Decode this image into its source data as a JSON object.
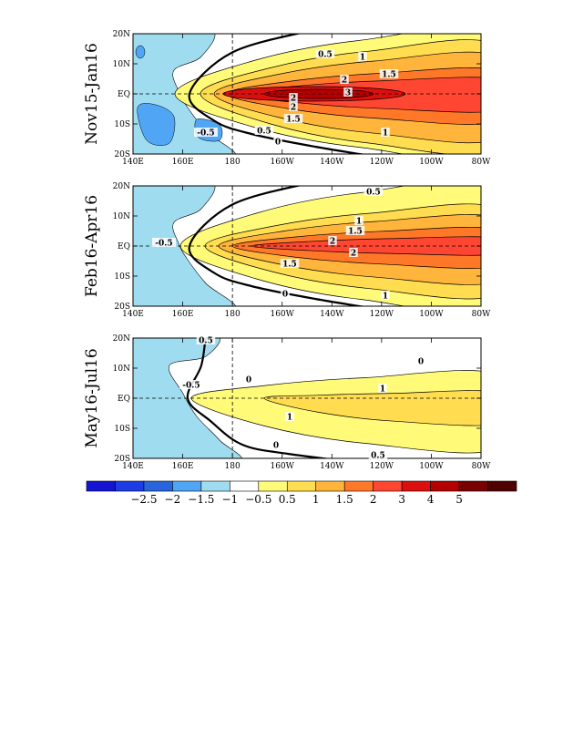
{
  "colorbar": {
    "colors": [
      "#1414d2",
      "#1e3ce6",
      "#2864dc",
      "#50a5f5",
      "#a0dcf0",
      "#ffffff",
      "#fffa78",
      "#ffdc50",
      "#ffb43c",
      "#ff7828",
      "#ff4632",
      "#dc0f0f",
      "#b40000",
      "#780000",
      "#500000"
    ],
    "labels": [
      "-2.5",
      "-2",
      "-1.5",
      "-1",
      "-0.5",
      "0.5",
      "1",
      "1.5",
      "2",
      "3",
      "4",
      "5"
    ]
  },
  "chart_data": [
    {
      "type": "heatmap",
      "title": "Nov15-Jan16",
      "x_tick_labels": [
        "140E",
        "160E",
        "180",
        "160W",
        "140W",
        "120W",
        "100W",
        "80W"
      ],
      "y_tick_labels": [
        "20N",
        "10N",
        "EQ",
        "10S",
        "20S"
      ],
      "xlim": [
        140,
        280
      ],
      "ylim": [
        -20,
        20
      ],
      "contour_labels": [
        "0.5",
        "1",
        "1.5",
        "2",
        "3",
        "2",
        "2",
        "1.5",
        "0.5",
        "1",
        "-0.5",
        "0"
      ],
      "description_values": {
        "peak_value_near_equator": 3,
        "warm_tongue_center_lon": 210
      }
    },
    {
      "type": "heatmap",
      "title": "Feb16-Apr16",
      "x_tick_labels": [
        "140E",
        "160E",
        "180",
        "160W",
        "140W",
        "120W",
        "100W",
        "80W"
      ],
      "y_tick_labels": [
        "20N",
        "10N",
        "EQ",
        "10S",
        "20S"
      ],
      "xlim": [
        140,
        280
      ],
      "ylim": [
        -20,
        20
      ],
      "contour_labels": [
        "0.5",
        "1",
        "1.5",
        "2",
        "2",
        "1.5",
        "1",
        "-0.5",
        "0"
      ],
      "description_values": {
        "peak_value_near_equator": 2.5,
        "warm_tongue_center_lon": 215
      }
    },
    {
      "type": "heatmap",
      "title": "May16-Jul16",
      "x_tick_labels": [
        "140E",
        "160E",
        "180",
        "160W",
        "140W",
        "120W",
        "100W",
        "80W"
      ],
      "y_tick_labels": [
        "20N",
        "10N",
        "EQ",
        "10S",
        "20S"
      ],
      "xlim": [
        140,
        280
      ],
      "ylim": [
        -20,
        20
      ],
      "contour_labels": [
        "0.5",
        "0",
        "1",
        "1",
        "0.5",
        "0",
        "0",
        "-0.5"
      ],
      "description_values": {
        "peak_value_near_equator": 1.2,
        "warm_tongue_center_lon": 235
      }
    }
  ]
}
